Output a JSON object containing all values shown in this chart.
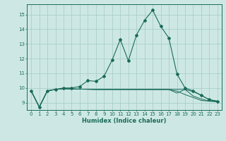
{
  "xlabel": "Humidex (Indice chaleur)",
  "bg_color": "#cde8e4",
  "grid_color": "#aaceca",
  "line_color": "#1a6b5a",
  "x": [
    0,
    1,
    2,
    3,
    4,
    5,
    6,
    7,
    8,
    9,
    10,
    11,
    12,
    13,
    14,
    15,
    16,
    17,
    18,
    19,
    20,
    21,
    22,
    23
  ],
  "y_main": [
    9.8,
    8.7,
    9.8,
    9.9,
    10.0,
    10.0,
    10.1,
    10.5,
    10.45,
    10.8,
    11.9,
    13.3,
    11.85,
    13.6,
    14.6,
    15.3,
    14.2,
    13.4,
    10.95,
    10.0,
    9.8,
    9.5,
    9.2,
    9.1
  ],
  "y_line2": [
    9.8,
    8.7,
    9.8,
    9.9,
    9.95,
    9.93,
    9.92,
    9.91,
    9.9,
    9.9,
    9.9,
    9.9,
    9.9,
    9.9,
    9.9,
    9.9,
    9.9,
    9.9,
    9.9,
    9.9,
    9.75,
    9.5,
    9.2,
    9.1
  ],
  "y_line3": [
    9.8,
    8.7,
    9.8,
    9.9,
    9.95,
    9.93,
    9.92,
    9.91,
    9.9,
    9.9,
    9.9,
    9.9,
    9.9,
    9.9,
    9.9,
    9.9,
    9.9,
    9.9,
    9.78,
    9.55,
    9.35,
    9.15,
    9.1,
    9.1
  ],
  "y_line4": [
    9.8,
    8.7,
    9.8,
    9.9,
    9.95,
    9.93,
    9.92,
    9.91,
    9.9,
    9.9,
    9.9,
    9.9,
    9.9,
    9.9,
    9.9,
    9.9,
    9.9,
    9.9,
    9.65,
    9.9,
    9.45,
    9.25,
    9.1,
    9.05
  ],
  "ylim": [
    8.5,
    15.7
  ],
  "yticks": [
    9,
    10,
    11,
    12,
    13,
    14,
    15
  ],
  "xlim": [
    -0.5,
    23.5
  ],
  "xticks": [
    0,
    1,
    2,
    3,
    4,
    5,
    6,
    7,
    8,
    9,
    10,
    11,
    12,
    13,
    14,
    15,
    16,
    17,
    18,
    19,
    20,
    21,
    22,
    23
  ]
}
